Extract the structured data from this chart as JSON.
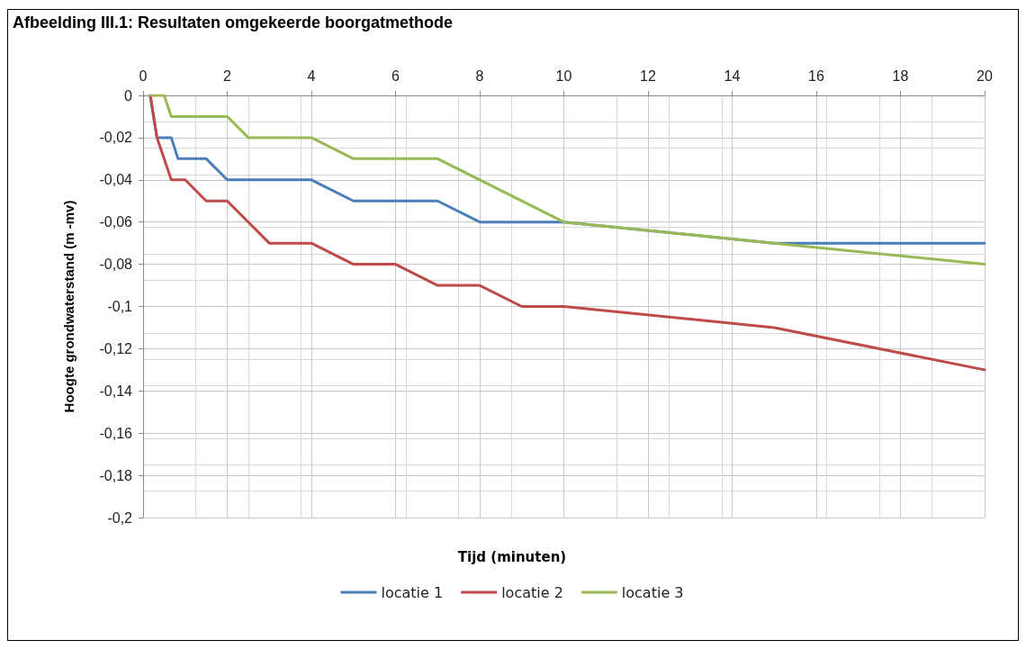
{
  "chart_data": {
    "type": "line",
    "title": "Afbeelding III.1: Resultaten omgekeerde boorgatmethode",
    "xlabel": "Tijd (minuten)",
    "ylabel": "Hoogte grondwaterstand (m -mv)",
    "xlim": [
      0,
      20
    ],
    "xticks": [
      0,
      2,
      4,
      6,
      8,
      10,
      12,
      14,
      16,
      18,
      20
    ],
    "ylim": [
      -0.2,
      0
    ],
    "yticks": [
      {
        "value": 0,
        "label": "0"
      },
      {
        "value": -0.02,
        "label": "-0,02"
      },
      {
        "value": -0.04,
        "label": "-0,04"
      },
      {
        "value": -0.06,
        "label": "-0,06"
      },
      {
        "value": -0.08,
        "label": "-0,08"
      },
      {
        "value": -0.1,
        "label": "-0,1"
      },
      {
        "value": -0.12,
        "label": "-0,12"
      },
      {
        "value": -0.14,
        "label": "-0,14"
      },
      {
        "value": -0.16,
        "label": "-0,16"
      },
      {
        "value": -0.18,
        "label": "-0,18"
      },
      {
        "value": -0.2,
        "label": "-0,2"
      }
    ],
    "grid": true,
    "legend": "bottom",
    "marker": "none",
    "line_style": "solid",
    "series": [
      {
        "name": "locatie 1",
        "color": "#4a7ebb",
        "x": [
          0.17,
          0.33,
          0.67,
          0.83,
          1.5,
          2,
          4,
          5,
          7,
          8,
          10,
          15,
          20
        ],
        "values": [
          0,
          -0.02,
          -0.02,
          -0.03,
          -0.03,
          -0.04,
          -0.04,
          -0.05,
          -0.05,
          -0.06,
          -0.06,
          -0.07,
          -0.07
        ]
      },
      {
        "name": "locatie 2",
        "color": "#be4b48",
        "x": [
          0.17,
          0.33,
          0.67,
          1,
          1.5,
          2,
          3,
          4,
          5,
          6,
          7,
          8,
          9,
          10,
          15,
          20
        ],
        "values": [
          0,
          -0.02,
          -0.04,
          -0.04,
          -0.05,
          -0.05,
          -0.07,
          -0.07,
          -0.08,
          -0.08,
          -0.09,
          -0.09,
          -0.1,
          -0.1,
          -0.11,
          -0.13
        ]
      },
      {
        "name": "locatie 3",
        "color": "#98b954",
        "x": [
          0.17,
          0.5,
          0.67,
          2,
          2.5,
          4,
          5,
          7,
          10,
          15,
          20
        ],
        "values": [
          0,
          0,
          -0.01,
          -0.01,
          -0.02,
          -0.02,
          -0.03,
          -0.03,
          -0.06,
          -0.07,
          -0.08
        ]
      }
    ]
  }
}
